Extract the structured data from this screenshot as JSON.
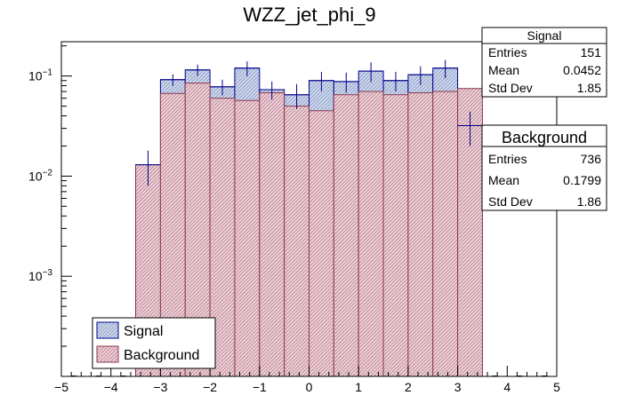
{
  "chart_data": {
    "type": "histogram",
    "title": "WZZ_jet_phi_9",
    "xlabel": "",
    "ylabel": "",
    "xlim": [
      -5,
      5
    ],
    "ylim": [
      0.0001,
      0.22
    ],
    "log_y": true,
    "x_ticks": [
      "−5",
      "−4",
      "−3",
      "−2",
      "−1",
      "0",
      "1",
      "2",
      "3",
      "4",
      "5"
    ],
    "y_tick_labels": [
      {
        "value": 0.1,
        "base": "10",
        "exp": "−1"
      },
      {
        "value": 0.01,
        "base": "10",
        "exp": "−2"
      },
      {
        "value": 0.001,
        "base": "10",
        "exp": "−3"
      }
    ],
    "bin_edges": [
      -3.5,
      -3.0,
      -2.5,
      -2.0,
      -1.5,
      -1.0,
      -0.5,
      0.0,
      0.5,
      1.0,
      1.5,
      2.0,
      2.5,
      3.0,
      3.5
    ],
    "series": [
      {
        "name": "Signal",
        "values": [
          0.013,
          0.092,
          0.115,
          0.078,
          0.12,
          0.073,
          0.065,
          0.09,
          0.088,
          0.112,
          0.09,
          0.103,
          0.12,
          0.032
        ],
        "errors_up": [
          0.005,
          0.012,
          0.015,
          0.014,
          0.02,
          0.015,
          0.018,
          0.02,
          0.02,
          0.025,
          0.02,
          0.022,
          0.025,
          0.012
        ],
        "errors_down": [
          0.005,
          0.012,
          0.015,
          0.014,
          0.02,
          0.015,
          0.018,
          0.02,
          0.02,
          0.025,
          0.02,
          0.022,
          0.025,
          0.012
        ],
        "color": "#00008b",
        "fill": "#c8d2e6"
      },
      {
        "name": "Background",
        "values": [
          0.013,
          0.067,
          0.085,
          0.06,
          0.057,
          0.068,
          0.05,
          0.045,
          0.065,
          0.07,
          0.065,
          0.068,
          0.07,
          0.075
        ],
        "color": "#8b3a50",
        "fill": "#e8c8d0"
      }
    ],
    "legend": {
      "position": "bottom-left",
      "entries": [
        "Signal",
        "Background"
      ]
    },
    "stats": [
      {
        "title": "Signal",
        "rows": [
          {
            "label": "Entries",
            "value": "151"
          },
          {
            "label": "Mean",
            "value": "0.0452"
          },
          {
            "label": "Std Dev",
            "value": "1.85"
          }
        ]
      },
      {
        "title": "Background",
        "rows": [
          {
            "label": "Entries",
            "value": "736"
          },
          {
            "label": "Mean",
            "value": "0.1799"
          },
          {
            "label": "Std Dev",
            "value": "1.86"
          }
        ]
      }
    ]
  }
}
